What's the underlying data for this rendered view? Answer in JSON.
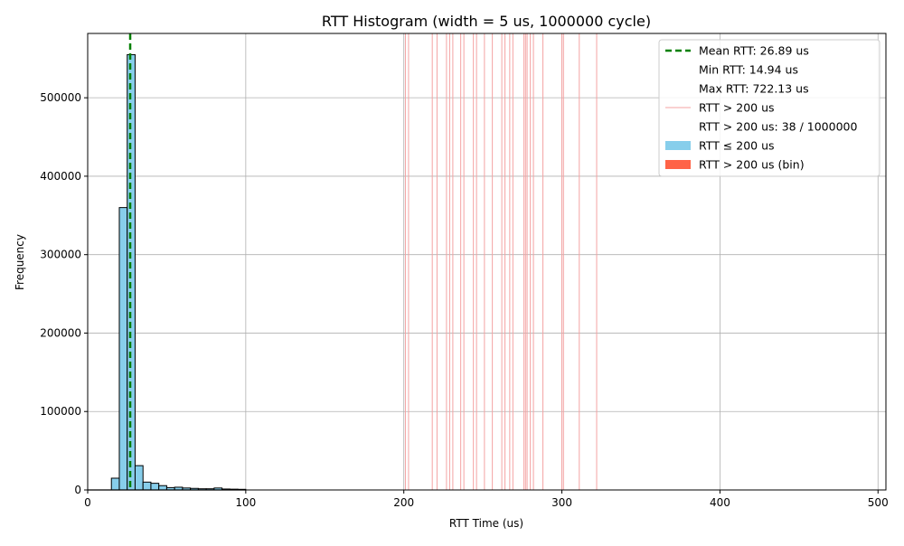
{
  "chart_data": {
    "type": "bar",
    "title": "RTT Histogram (width = 5 us, 1000000 cycle)",
    "xlabel": "RTT Time (us)",
    "ylabel": "Frequency",
    "xlim": [
      0,
      505
    ],
    "ylim": [
      0,
      582000
    ],
    "x_ticks": [
      0,
      100,
      200,
      300,
      400,
      500
    ],
    "y_ticks": [
      0,
      100000,
      200000,
      300000,
      400000,
      500000
    ],
    "grid": true,
    "bin_width": 5,
    "bins": [
      {
        "start": 15,
        "value": 15000
      },
      {
        "start": 20,
        "value": 360000
      },
      {
        "start": 25,
        "value": 555000
      },
      {
        "start": 30,
        "value": 31000
      },
      {
        "start": 35,
        "value": 10000
      },
      {
        "start": 40,
        "value": 8500
      },
      {
        "start": 45,
        "value": 5500
      },
      {
        "start": 50,
        "value": 3000
      },
      {
        "start": 55,
        "value": 3500
      },
      {
        "start": 60,
        "value": 2500
      },
      {
        "start": 65,
        "value": 2000
      },
      {
        "start": 70,
        "value": 1500
      },
      {
        "start": 75,
        "value": 1500
      },
      {
        "start": 80,
        "value": 2500
      },
      {
        "start": 85,
        "value": 1200
      },
      {
        "start": 90,
        "value": 1000
      },
      {
        "start": 95,
        "value": 800
      }
    ],
    "mean_rtt": 26.89,
    "outlier_threshold": 200,
    "outlier_lines": [
      201,
      203,
      218,
      221,
      227,
      229,
      231,
      236,
      238,
      244,
      246,
      251,
      256,
      262,
      264,
      267,
      269,
      276,
      277,
      278,
      280,
      282,
      288,
      300,
      301,
      311,
      322
    ],
    "legend_position": "upper right",
    "legend": [
      {
        "label": "Mean RTT: 26.89 us",
        "marker": "dashed-line",
        "color": "#008000"
      },
      {
        "label": "Min RTT: 14.94 us",
        "marker": "none"
      },
      {
        "label": "Max RTT: 722.13 us",
        "marker": "none"
      },
      {
        "label": "RTT > 200 us",
        "marker": "line",
        "color": "#f4a3a3"
      },
      {
        "label": "RTT > 200 us: 38 / 1000000",
        "marker": "none"
      },
      {
        "label": "RTT ≤ 200 us",
        "marker": "patch",
        "color": "#87ceeb"
      },
      {
        "label": "RTT > 200 us (bin)",
        "marker": "patch",
        "color": "#ff6347"
      }
    ],
    "colors": {
      "bar_fill": "#87ceeb",
      "bar_edge": "#000000",
      "mean_line": "#008000",
      "outlier_line": "#f4a3a3",
      "grid": "#b0b0b0"
    }
  }
}
